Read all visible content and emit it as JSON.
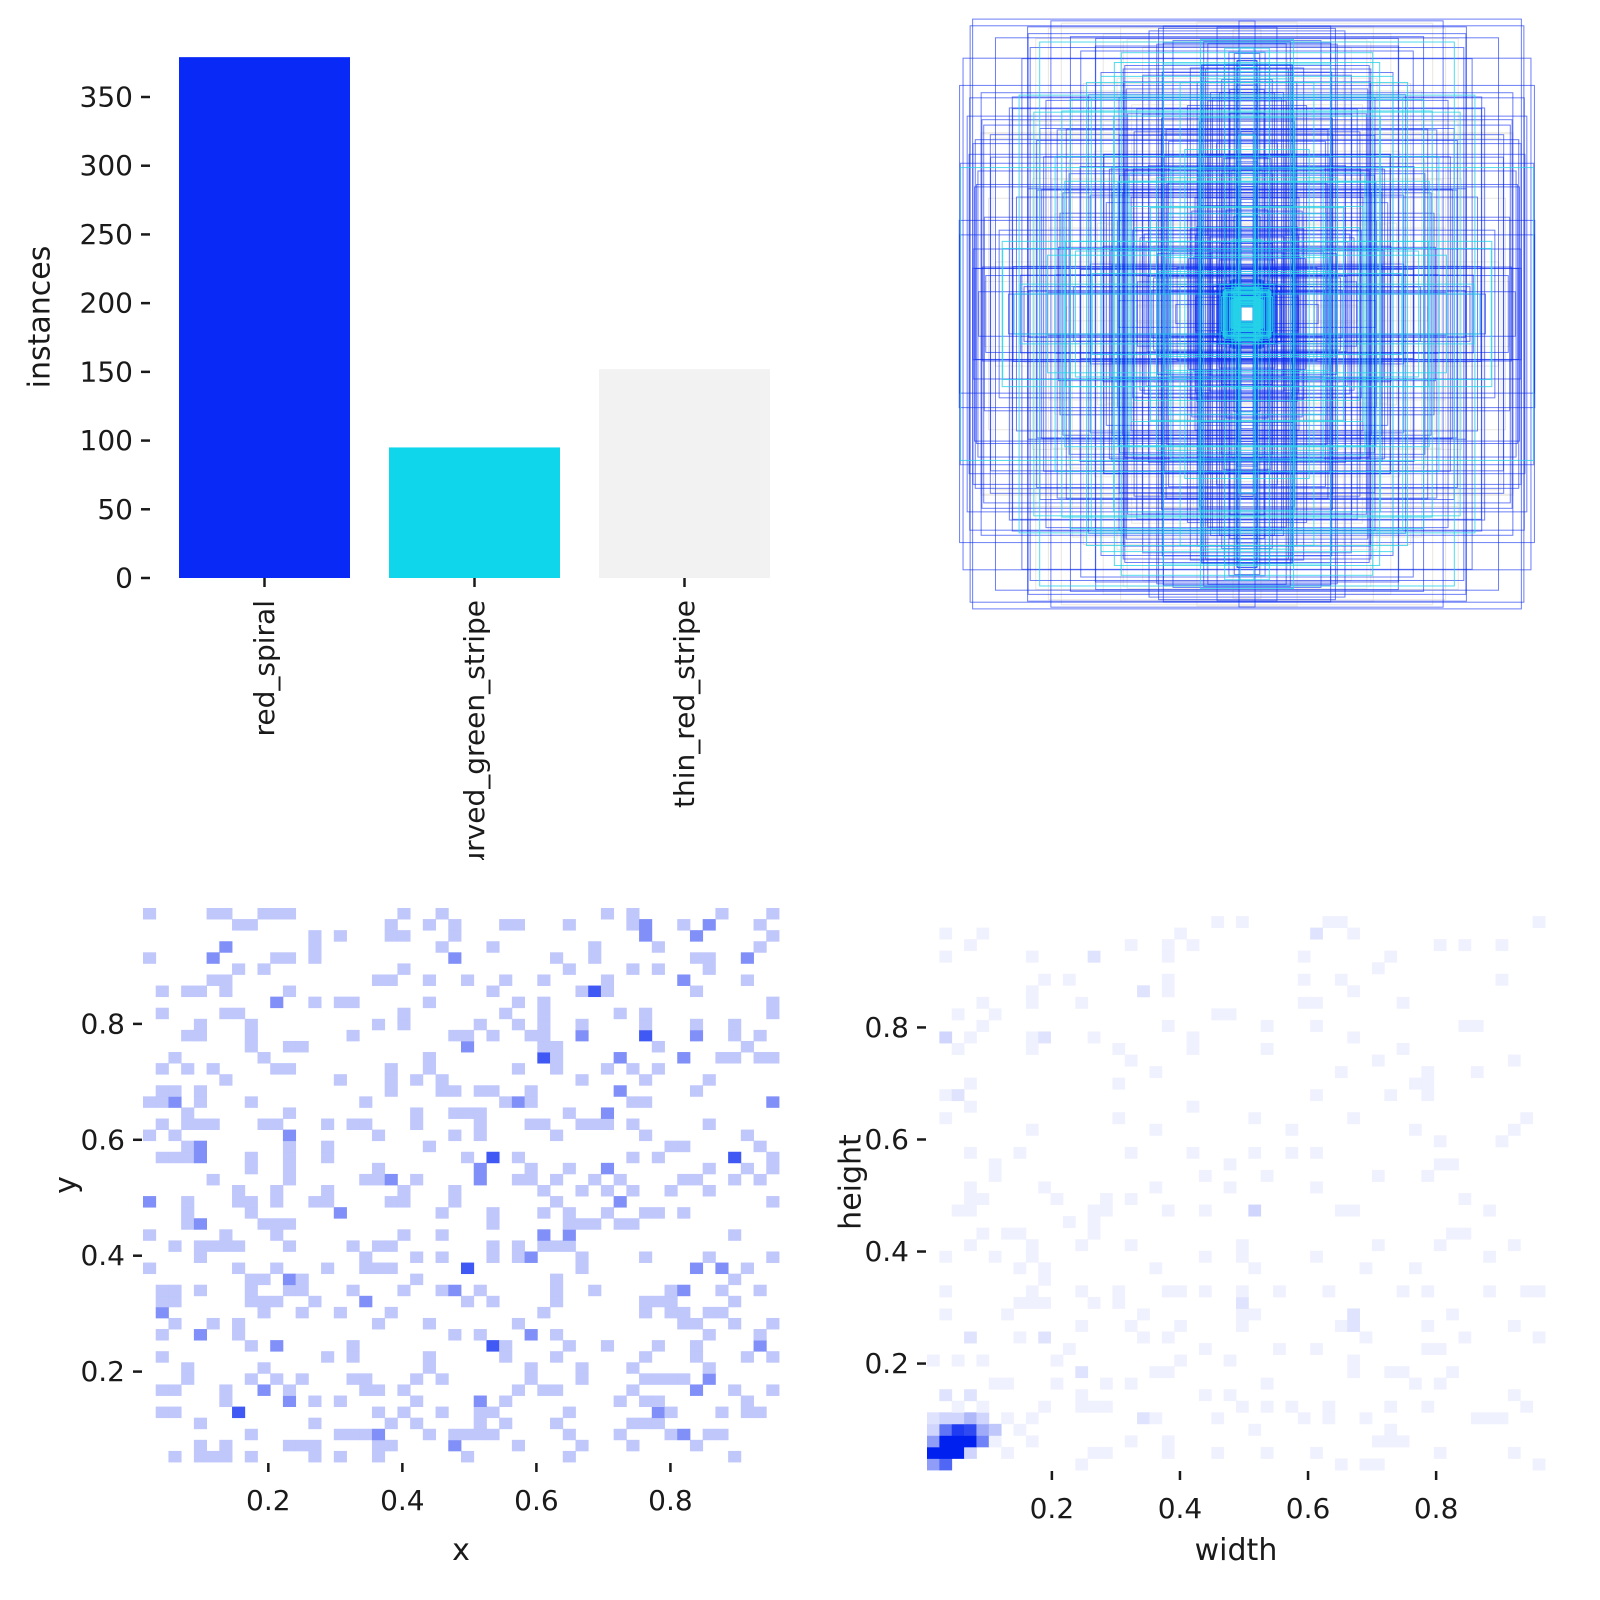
{
  "figure": {
    "background": "#ffffff",
    "panels": 4
  },
  "chart_data": [
    {
      "id": "instances_per_class",
      "type": "bar",
      "title": "",
      "categories": [
        "red_spiral",
        "curved_green_stripe",
        "thin_red_stripe"
      ],
      "values": [
        379,
        95,
        152
      ],
      "bar_colors": [
        "#0829f6",
        "#0fd6ea",
        "#f2f2f2"
      ],
      "xlabel": "",
      "ylabel": "instances",
      "yticks": [
        0,
        50,
        100,
        150,
        200,
        250,
        300,
        350
      ],
      "ylim": [
        0,
        398
      ],
      "grid": false,
      "legend": "none",
      "xticklabel_rotation": 90
    },
    {
      "id": "centered_bbox_overlay",
      "type": "other",
      "description": "All bounding boxes drawn as unfilled outlines centered on a common midpoint; outline color encodes class; sizes follow the width/height distribution (many tiny boxes forming a solid blue core, sparser large boxes forming nested frames).",
      "extent": [
        0,
        1,
        0,
        1
      ],
      "center": [
        0.5,
        0.5
      ],
      "classes": [
        {
          "name": "red_spiral",
          "count": 379,
          "color": "#0a2af0",
          "opacity": 0.6
        },
        {
          "name": "curved_green_stripe",
          "count": 95,
          "color": "#25d2e8",
          "opacity": 0.8
        },
        {
          "name": "thin_red_stripe",
          "count": 152,
          "color": "#e6e2da",
          "opacity": 0.85
        }
      ]
    },
    {
      "id": "xy_position_heatmap",
      "type": "heatmap",
      "xlabel": "x",
      "ylabel": "y",
      "xticks": [
        0.2,
        0.4,
        0.6,
        0.8
      ],
      "yticks": [
        0.2,
        0.4,
        0.6,
        0.8
      ],
      "xlim": [
        0.013,
        0.962
      ],
      "ylim": [
        0.044,
        1.0
      ],
      "bins": 50,
      "n_points": 626,
      "distribution": "uniform scatter of instance centers over the full unit square",
      "max_count": 4,
      "colormap": [
        "#ffffff",
        "#0020f0"
      ],
      "grid": false
    },
    {
      "id": "wh_size_heatmap",
      "type": "heatmap",
      "xlabel": "width",
      "ylabel": "height",
      "xticks": [
        0.2,
        0.4,
        0.6,
        0.8
      ],
      "yticks": [
        0.2,
        0.4,
        0.6,
        0.8
      ],
      "xlim": [
        0.005,
        0.97
      ],
      "ylim": [
        0.01,
        1.04
      ],
      "bins": 50,
      "n_points": 626,
      "distribution": "dense correlated cluster of small boxes near width≈0.05, height≈0.06 plus a sparse faint tail of larger sizes spread over the whole range",
      "max_count": 16,
      "colormap": [
        "#ffffff",
        "#0020f0"
      ],
      "grid": false
    }
  ]
}
